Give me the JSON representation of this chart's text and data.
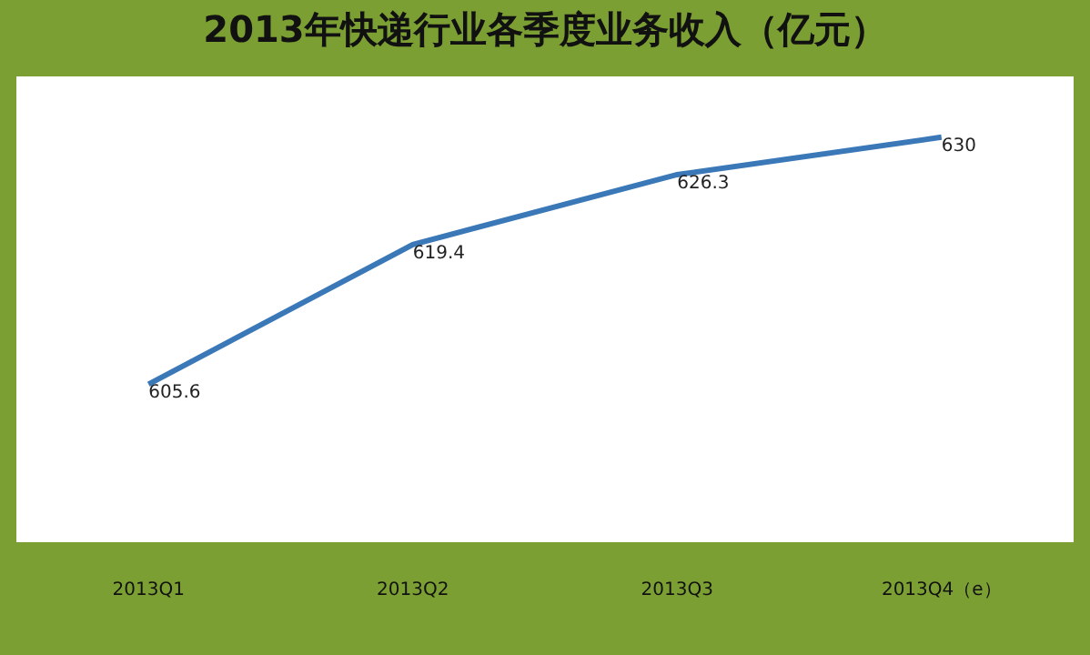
{
  "chart_data": {
    "type": "line",
    "title": "2013年快递行业各季度业务收入（亿元）",
    "categories": [
      "2013Q1",
      "2013Q2",
      "2013Q3",
      "2013Q4（e）"
    ],
    "series": [
      {
        "color": "#3b78b8",
        "values": [
          605.6,
          619.4,
          626.3,
          630
        ]
      }
    ],
    "ylim": [
      590,
      636
    ],
    "tick_labels": "x",
    "data_labels": true,
    "line_style": "solid"
  }
}
